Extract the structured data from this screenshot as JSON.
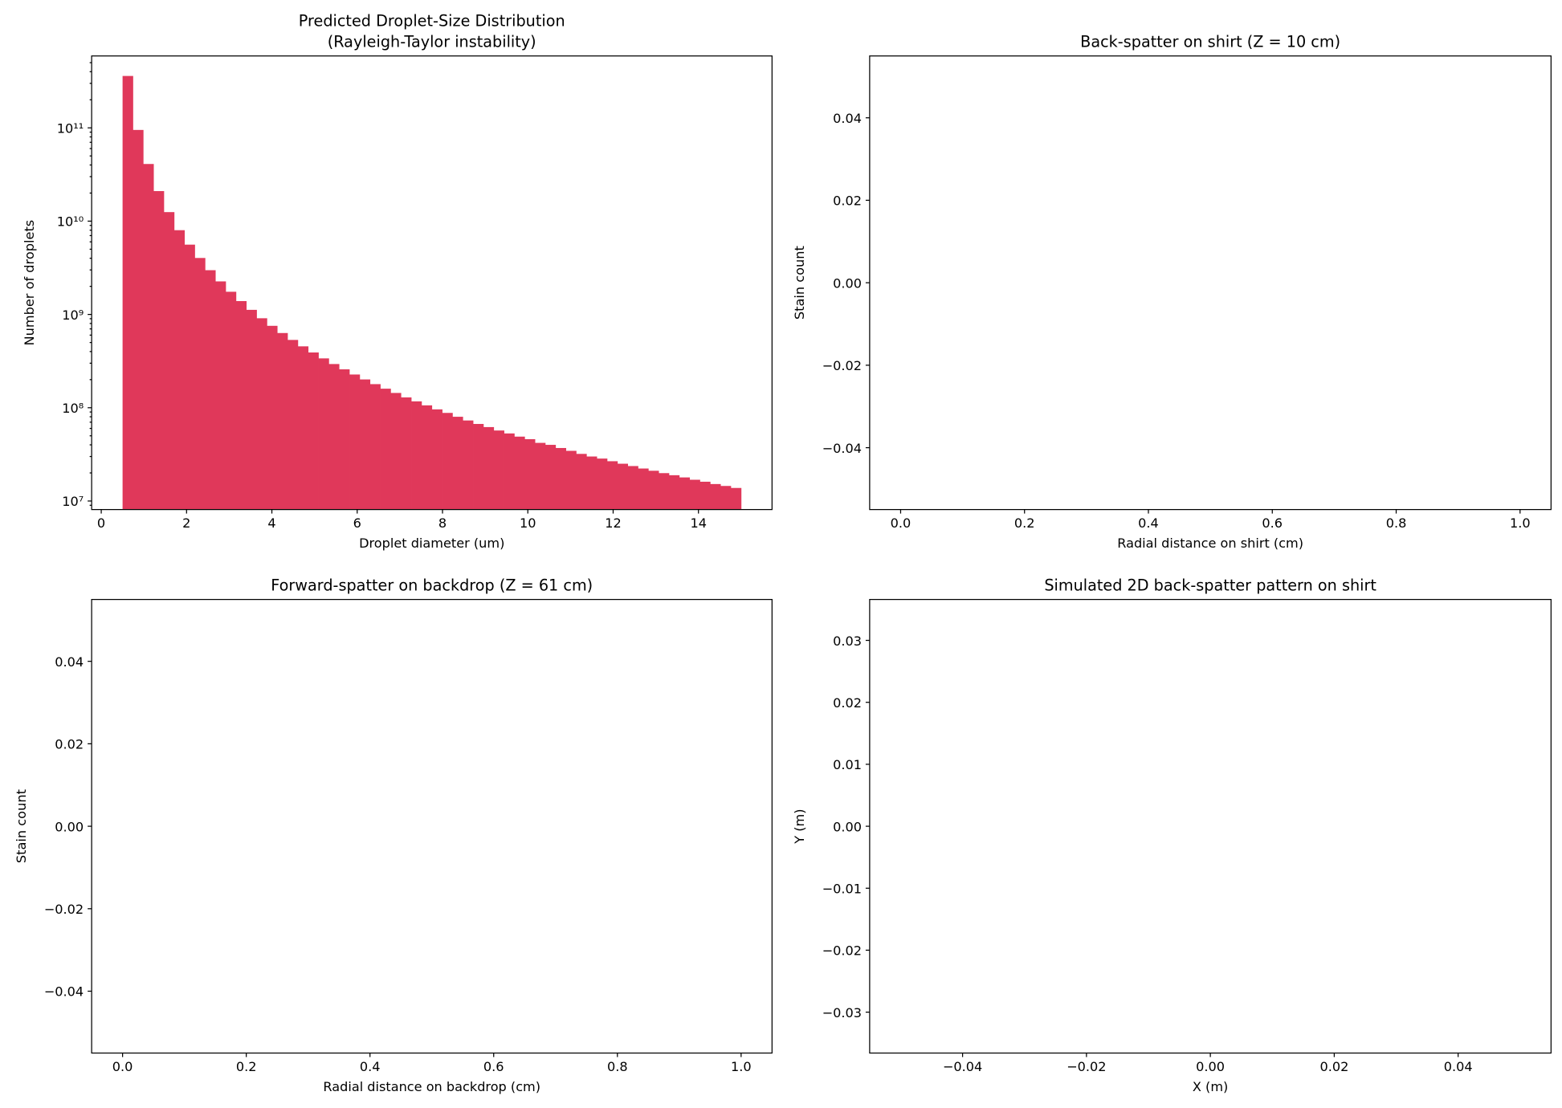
{
  "chart_data": [
    {
      "type": "histogram",
      "title": [
        "Predicted Droplet-Size Distribution",
        "(Rayleigh-Taylor instability)"
      ],
      "xlabel": "Droplet diameter (um)",
      "ylabel": "Number of droplets",
      "color": "#e0385a",
      "log_y": true,
      "bins": [
        0.5,
        0.7417,
        0.9833,
        1.225,
        1.4667,
        1.7083,
        1.95,
        2.1917,
        2.4333,
        2.675,
        2.9167,
        3.1583,
        3.4,
        3.6417,
        3.8833,
        4.125,
        4.3667,
        4.6083,
        4.85,
        5.0917,
        5.3333,
        5.575,
        5.8167,
        6.0583,
        6.3,
        6.5417,
        6.7833,
        7.025,
        7.2667,
        7.5083,
        7.75,
        7.9917,
        8.2333,
        8.475,
        8.7167,
        8.9583,
        9.2,
        9.4417,
        9.6833,
        9.925,
        10.1667,
        10.4083,
        10.65,
        10.8917,
        11.1333,
        11.375,
        11.6167,
        11.8583,
        12.1,
        12.3417,
        12.5833,
        12.825,
        13.0667,
        13.3083,
        13.55,
        13.7917,
        14.0333,
        14.275,
        14.5167,
        14.7583,
        15.0
      ],
      "values": [
        360000000000,
        95000000000,
        41000000000,
        21000000000,
        12500000000,
        8000000000,
        5600000000,
        4030000000,
        2980000000,
        2260000000,
        1750000000,
        1390000000,
        1120000000,
        910000000,
        755000000,
        632000000,
        533000000,
        455000000,
        391000000,
        338000000,
        294000000,
        258000000,
        227000000,
        201000000,
        179000000,
        160000000,
        144000000,
        129000000,
        117000000,
        106000000,
        96000000,
        88000000,
        80000000,
        73000000,
        67000000,
        62000000,
        57000000,
        53000000,
        49000000,
        46000000,
        42000000,
        40000000,
        37000000,
        34500000,
        32000000,
        30000000,
        28500000,
        26700000,
        25100000,
        23700000,
        22300000,
        21100000,
        19900000,
        18900000,
        17900000,
        16900000,
        16100000,
        15200000,
        14500000,
        13800000
      ],
      "xlim": [
        -0.225,
        15.725
      ],
      "xticks": [
        0,
        2,
        4,
        6,
        8,
        10,
        12,
        14
      ],
      "ylim": [
        8100000,
        590000000000
      ],
      "yticks": [
        {
          "value": 10000000,
          "label": "10⁷"
        },
        {
          "value": 100000000,
          "label": "10⁸"
        },
        {
          "value": 1000000000,
          "label": "10⁹"
        },
        {
          "value": 10000000000,
          "label": "10¹⁰"
        },
        {
          "value": 100000000000,
          "label": "10¹¹"
        }
      ]
    },
    {
      "type": "histogram",
      "title": [
        "Back-spatter on shirt (Z = 10 cm)"
      ],
      "xlabel": "Radial distance on shirt (cm)",
      "ylabel": "Stain count",
      "xlim": [
        -0.05,
        1.05
      ],
      "xticks": [
        {
          "value": 0,
          "label": "0.0"
        },
        {
          "value": 0.2,
          "label": "0.2"
        },
        {
          "value": 0.4,
          "label": "0.4"
        },
        {
          "value": 0.6,
          "label": "0.6"
        },
        {
          "value": 0.8,
          "label": "0.8"
        },
        {
          "value": 1,
          "label": "1.0"
        }
      ],
      "ylim": [
        -0.055,
        0.055
      ],
      "yticks": [
        {
          "value": -0.04,
          "label": "−0.04"
        },
        {
          "value": -0.02,
          "label": "−0.02"
        },
        {
          "value": 0,
          "label": "0.00"
        },
        {
          "value": 0.02,
          "label": "0.02"
        },
        {
          "value": 0.04,
          "label": "0.04"
        }
      ]
    },
    {
      "type": "histogram",
      "title": [
        "Forward-spatter on backdrop (Z = 61 cm)"
      ],
      "xlabel": "Radial distance on backdrop (cm)",
      "ylabel": "Stain count",
      "xlim": [
        -0.05,
        1.05
      ],
      "xticks": [
        {
          "value": 0,
          "label": "0.0"
        },
        {
          "value": 0.2,
          "label": "0.2"
        },
        {
          "value": 0.4,
          "label": "0.4"
        },
        {
          "value": 0.6,
          "label": "0.6"
        },
        {
          "value": 0.8,
          "label": "0.8"
        },
        {
          "value": 1,
          "label": "1.0"
        }
      ],
      "ylim": [
        -0.055,
        0.055
      ],
      "yticks": [
        {
          "value": -0.04,
          "label": "−0.04"
        },
        {
          "value": -0.02,
          "label": "−0.02"
        },
        {
          "value": 0,
          "label": "0.00"
        },
        {
          "value": 0.02,
          "label": "0.02"
        },
        {
          "value": 0.04,
          "label": "0.04"
        }
      ]
    },
    {
      "type": "scatter",
      "title": [
        "Simulated 2D back-spatter pattern on shirt"
      ],
      "xlabel": "X (m)",
      "ylabel": "Y (m)",
      "xlim": [
        -0.055,
        0.055
      ],
      "xticks": [
        {
          "value": -0.04,
          "label": "−0.04"
        },
        {
          "value": -0.02,
          "label": "−0.02"
        },
        {
          "value": 0,
          "label": "0.00"
        },
        {
          "value": 0.02,
          "label": "0.02"
        },
        {
          "value": 0.04,
          "label": "0.04"
        }
      ],
      "ylim": [
        -0.0366,
        0.0366
      ],
      "yticks": [
        {
          "value": -0.03,
          "label": "−0.03"
        },
        {
          "value": -0.02,
          "label": "−0.02"
        },
        {
          "value": -0.01,
          "label": "−0.01"
        },
        {
          "value": 0,
          "label": "0.00"
        },
        {
          "value": 0.01,
          "label": "0.01"
        },
        {
          "value": 0.02,
          "label": "0.02"
        },
        {
          "value": 0.03,
          "label": "0.03"
        }
      ]
    }
  ]
}
